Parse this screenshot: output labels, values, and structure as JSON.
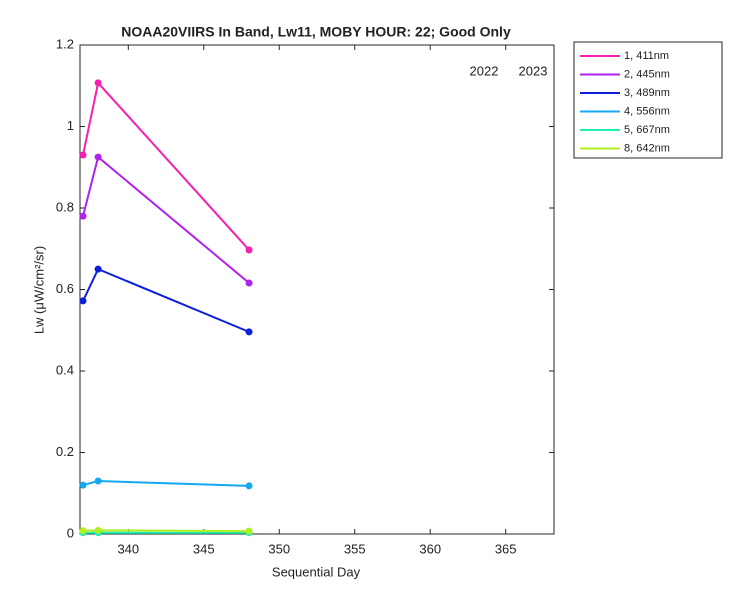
{
  "chart_data": {
    "type": "line",
    "title": "NOAA20VIIRS In Band,  Lw11, MOBY HOUR: 22;  Good Only",
    "x_label": "Sequential Day",
    "y_label": "Lw (μW/cm²/sr)",
    "annotations": [
      "2022",
      "2023"
    ],
    "x": [
      337,
      338,
      348
    ],
    "series": [
      {
        "name": "1, 411nm",
        "color": "#f51fb0",
        "values": [
          0.93,
          1.107,
          0.697
        ]
      },
      {
        "name": "2, 445nm",
        "color": "#b022ee",
        "values": [
          0.78,
          0.925,
          0.616
        ]
      },
      {
        "name": "3, 489nm",
        "color": "#0d1fd8",
        "values": [
          0.572,
          0.65,
          0.496
        ]
      },
      {
        "name": "4, 556nm",
        "color": "#14a9ef",
        "values": [
          0.12,
          0.13,
          0.118
        ]
      },
      {
        "name": "5, 667nm",
        "color": "#1eefb4",
        "values": [
          0.003,
          0.003,
          0.003
        ]
      },
      {
        "name": "8, 642nm",
        "color": "#b0ef1e",
        "values": [
          0.008,
          0.009,
          0.007
        ]
      }
    ],
    "xlim": [
      336.8,
      368.2
    ],
    "xticks": [
      340,
      345,
      350,
      355,
      360,
      365
    ],
    "ylim": [
      0,
      1.2
    ],
    "yticks": [
      0,
      0.2,
      0.4,
      0.6,
      0.8,
      1,
      1.2
    ],
    "grid": false,
    "legend": "northeastoutside"
  }
}
